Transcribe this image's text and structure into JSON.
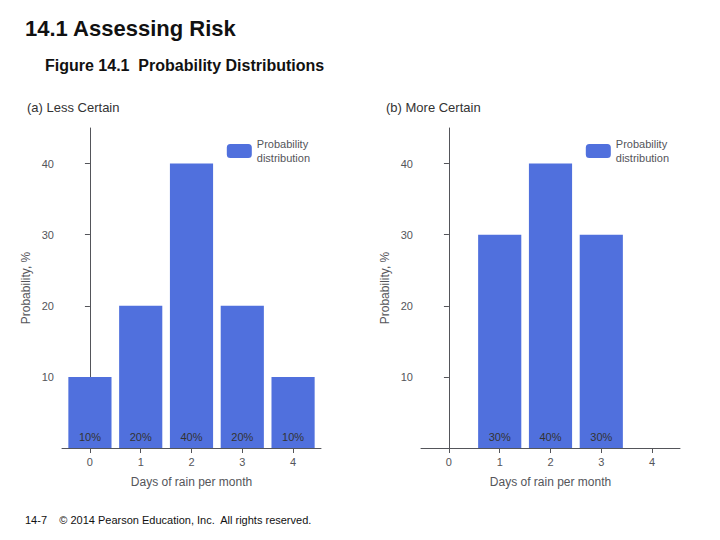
{
  "title": "14.1 Assessing Risk",
  "subtitle": "Figure 14.1  Probability Distributions",
  "footer": "14-7    © 2014 Pearson Education, Inc.  All rights reserved.",
  "chart_data": [
    {
      "type": "bar",
      "title": "(a) Less Certain",
      "x": [
        0,
        1,
        2,
        3,
        4
      ],
      "xlabel": "Days of rain per month",
      "ylabel": "Probability, %",
      "xlim": [
        -0.55,
        4.55
      ],
      "xticks": [
        0,
        1,
        2,
        3,
        4
      ],
      "ylim": [
        0,
        45
      ],
      "yticks": [
        10,
        20,
        30,
        40
      ],
      "series": [
        {
          "name": "Probability\ndistribution",
          "values": [
            10,
            20,
            40,
            20,
            10
          ],
          "value_labels": [
            "10%",
            "20%",
            "40%",
            "20%",
            "10%"
          ]
        }
      ],
      "data_labels": true,
      "legend": "upper right",
      "grid": false
    },
    {
      "type": "bar",
      "title": "(b) More Certain",
      "x": [
        1,
        2,
        3
      ],
      "xlabel": "Days of rain per month",
      "ylabel": "Probability, %",
      "xlim": [
        -0.55,
        4.55
      ],
      "xticks": [
        0,
        1,
        2,
        3,
        4
      ],
      "ylim": [
        0,
        45
      ],
      "yticks": [
        10,
        20,
        30,
        40
      ],
      "series": [
        {
          "name": "Probability\ndistribution",
          "values": [
            30,
            40,
            30
          ],
          "value_labels": [
            "30%",
            "40%",
            "30%"
          ]
        }
      ],
      "data_labels": true,
      "legend": "upper right",
      "grid": false
    }
  ]
}
